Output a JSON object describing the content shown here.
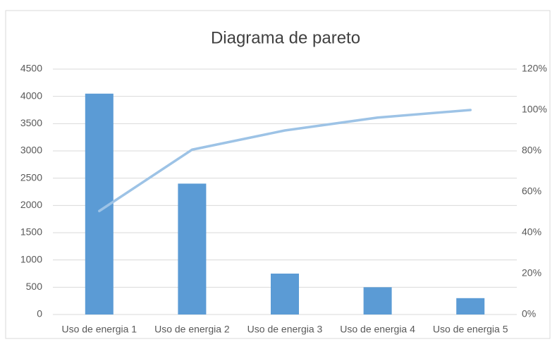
{
  "chart_data": {
    "type": "bar",
    "title": "Diagrama de pareto",
    "categories": [
      "Uso de energia 1",
      "Uso de energia 2",
      "Uso de energia 3",
      "Uso de energia 4",
      "Uso de energia 5"
    ],
    "series": [
      {
        "type": "bar",
        "color": "#5b9bd5",
        "values": [
          4050,
          2400,
          750,
          500,
          300
        ]
      },
      {
        "type": "line",
        "axis": "y2",
        "color": "#9dc3e6",
        "values": [
          50.6,
          80.6,
          90,
          96.3,
          100
        ]
      }
    ],
    "ylim": [
      0,
      4500
    ],
    "yticks": [
      0,
      500,
      1000,
      1500,
      2000,
      2500,
      3000,
      3500,
      4000,
      4500
    ],
    "y2lim": [
      0,
      120
    ],
    "y2ticks": [
      {
        "value": 0,
        "label": "0%"
      },
      {
        "value": 20,
        "label": "20%"
      },
      {
        "value": 40,
        "label": "40%"
      },
      {
        "value": 60,
        "label": "60%"
      },
      {
        "value": 80,
        "label": "80%"
      },
      {
        "value": 100,
        "label": "100%"
      },
      {
        "value": 120,
        "label": "120%"
      }
    ],
    "grid": true
  }
}
